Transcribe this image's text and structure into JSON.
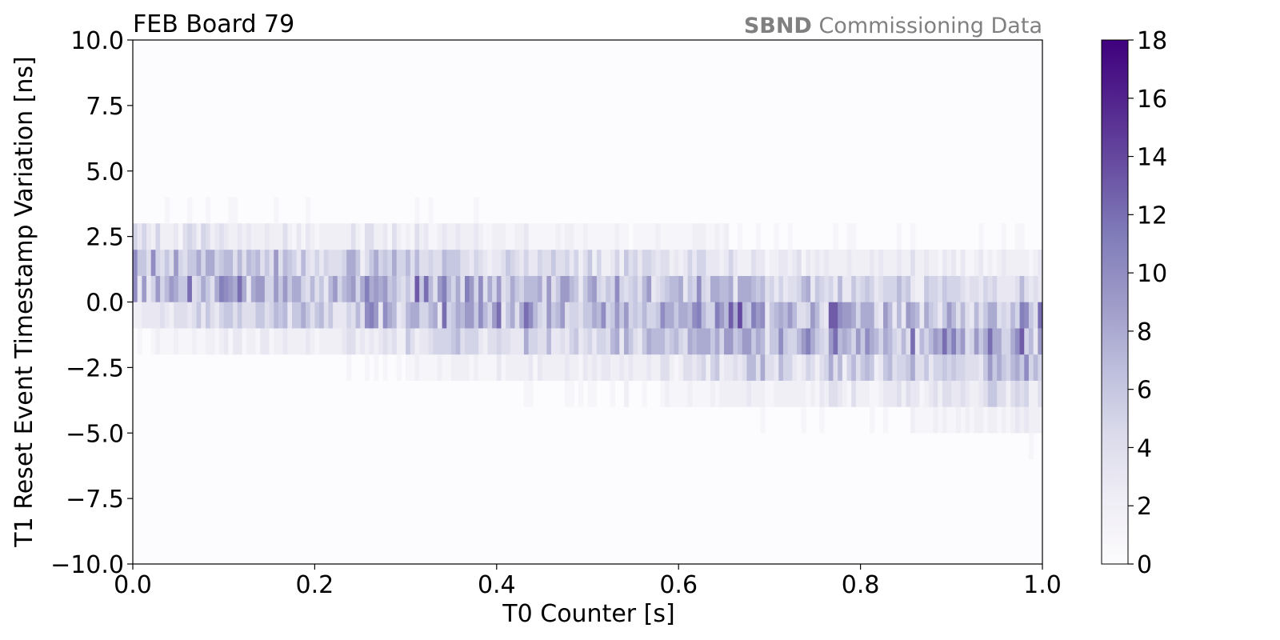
{
  "chart_data": {
    "type": "heatmap",
    "title": "FEB Board 79",
    "annotation": {
      "bold": "SBND",
      "rest": " Commissioning Data"
    },
    "xlabel": "T0 Counter [s]",
    "ylabel": "T1 Reset Event Timestamp Variation [ns]",
    "xlim": [
      0.0,
      1.0
    ],
    "ylim": [
      -10.0,
      10.0
    ],
    "x_ticks": [
      "0.0",
      "0.2",
      "0.4",
      "0.6",
      "0.8",
      "1.0"
    ],
    "y_ticks": [
      "10.0",
      "7.5",
      "5.0",
      "2.5",
      "0.0",
      "−2.5",
      "−5.0",
      "−7.5",
      "−10.0"
    ],
    "x_bin_width": 0.005,
    "y_bin_width": 1.0,
    "colorbar": {
      "min": 0,
      "max": 18,
      "colormap": "Purples",
      "ticks": [
        "18",
        "16",
        "14",
        "12",
        "10",
        "8",
        "6",
        "4",
        "2",
        "0"
      ]
    },
    "profile_description": "counts concentrated between -1 and 3 ns at T0=0, band drifts linearly downward to about -5 to 2 ns at T0=1",
    "band_center_start": 1.0,
    "band_center_end": -1.5,
    "band_halfwidth_start": 2.2,
    "band_halfwidth_end": 3.2,
    "peak_count": 18
  },
  "colors": {
    "low": "#fcfbfd",
    "high": "#3f007d"
  }
}
